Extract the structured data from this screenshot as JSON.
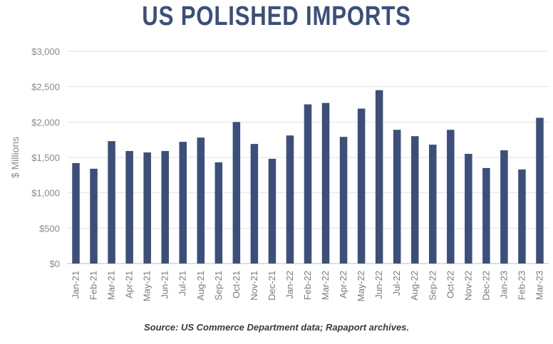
{
  "chart_data": {
    "type": "bar",
    "title": "US POLISHED IMPORTS",
    "ylabel": "$ Millions",
    "xlabel": "",
    "ylim": [
      0,
      3000
    ],
    "y_ticks": [
      {
        "value": 0,
        "label": "$0"
      },
      {
        "value": 500,
        "label": "$500"
      },
      {
        "value": 1000,
        "label": "$1,000"
      },
      {
        "value": 1500,
        "label": "$1,500"
      },
      {
        "value": 2000,
        "label": "$2,000"
      },
      {
        "value": 2500,
        "label": "$2,500"
      },
      {
        "value": 3000,
        "label": "$3,000"
      }
    ],
    "grid": true,
    "categories": [
      "Jan-21",
      "Feb-21",
      "Mar-21",
      "Apr-21",
      "May-21",
      "Jun-21",
      "Jul-21",
      "Aug-21",
      "Sep-21",
      "Oct-21",
      "Nov-21",
      "Dec-21",
      "Jan-22",
      "Feb-22",
      "Mar-22",
      "Apr-22",
      "May-22",
      "Jun-22",
      "Jul-22",
      "Aug-22",
      "Sep-22",
      "Oct-22",
      "Nov-22",
      "Dec-22",
      "Jan-23",
      "Feb-23",
      "Mar-23"
    ],
    "values": [
      1420,
      1340,
      1730,
      1590,
      1570,
      1590,
      1720,
      1780,
      1430,
      2000,
      1690,
      1480,
      1810,
      2250,
      2270,
      1790,
      2190,
      2450,
      1890,
      1800,
      1680,
      1890,
      1550,
      1350,
      1600,
      1330,
      2060
    ],
    "bar_color": "#3b4f7a",
    "grid_color": "#e2e2e2",
    "source": "Source: US Commerce Department data; Rapaport archives."
  }
}
